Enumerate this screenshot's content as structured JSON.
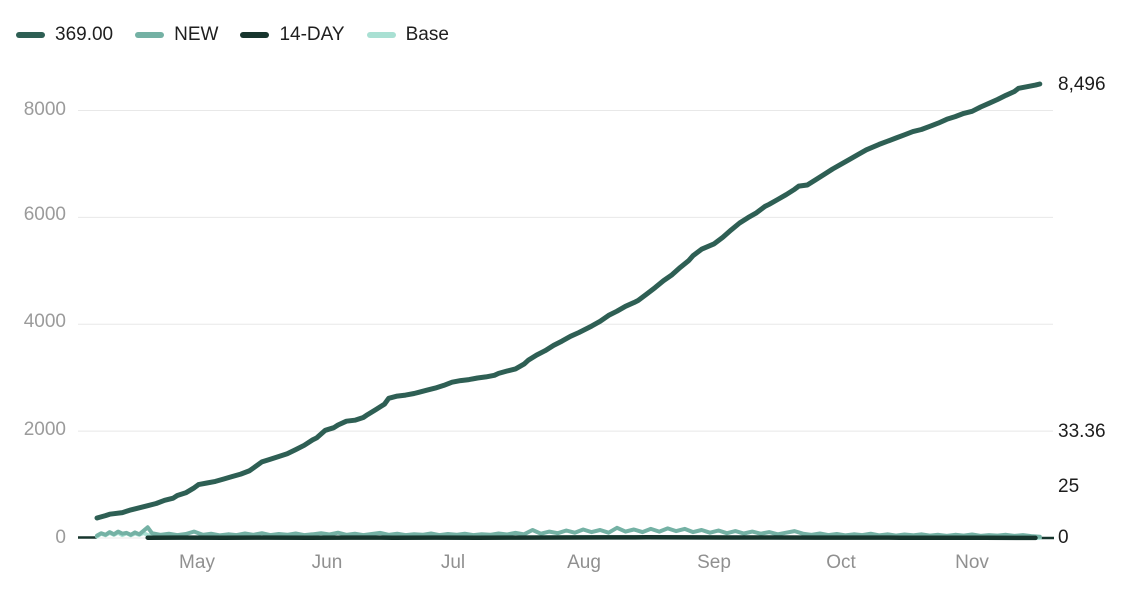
{
  "legend": {
    "items": [
      {
        "label": "369.00",
        "color": "#2e5f54"
      },
      {
        "label": "NEW",
        "color": "#74b1a4"
      },
      {
        "label": "14-DAY",
        "color": "#17352d"
      },
      {
        "label": "Base",
        "color": "#a9e0d3"
      }
    ]
  },
  "y_axis": {
    "ticks": [
      "8000",
      "6000",
      "4000",
      "2000",
      "0"
    ]
  },
  "x_axis": {
    "ticks": [
      "May",
      "Jun",
      "Jul",
      "Aug",
      "Sep",
      "Oct",
      "Nov"
    ]
  },
  "right_labels": {
    "total": "8,496",
    "avg": "33.36",
    "mid": "25",
    "zero": "0"
  },
  "chart_data": {
    "type": "line",
    "title": "",
    "xlabel": "",
    "ylabel": "",
    "x_unit": "days (day 0 = early April, ticks at month starts May–Nov)",
    "ylim": [
      0,
      8500
    ],
    "grid": "horizontal",
    "grid_color": "#e8e8e8",
    "legend_position": "top-left",
    "y_ticks_values": [
      0,
      2000,
      4000,
      6000,
      8000
    ],
    "x_ticks_days": [
      23.7,
      54.4,
      84.2,
      115.2,
      145.9,
      176.0,
      206.9
    ],
    "last_values": {
      "cumulative": 8496,
      "avg": 33.36,
      "mid": 25,
      "zero": 0
    },
    "series": [
      {
        "name": "Base",
        "color": "#a9e0d3",
        "width": 4,
        "points": [
          [
            0,
            30
          ],
          [
            1,
            80
          ],
          [
            2,
            50
          ],
          [
            3,
            95
          ],
          [
            4,
            60
          ],
          [
            5,
            100
          ],
          [
            6,
            55
          ],
          [
            7,
            90
          ],
          [
            8,
            50
          ],
          [
            9,
            85
          ],
          [
            10,
            60
          ],
          [
            11,
            95
          ],
          [
            12,
            55
          ],
          [
            14,
            40
          ],
          [
            16,
            25
          ],
          [
            20,
            15
          ],
          [
            30,
            12
          ],
          [
            40,
            10
          ],
          [
            60,
            12
          ],
          [
            80,
            10
          ],
          [
            100,
            15
          ],
          [
            120,
            18
          ],
          [
            140,
            15
          ],
          [
            160,
            12
          ],
          [
            180,
            10
          ],
          [
            200,
            8
          ],
          [
            223,
            2
          ]
        ]
      },
      {
        "name": "NEW",
        "color": "#74b1a4",
        "width": 4,
        "points": [
          [
            0,
            45
          ],
          [
            1,
            90
          ],
          [
            2,
            60
          ],
          [
            3,
            110
          ],
          [
            4,
            70
          ],
          [
            5,
            120
          ],
          [
            6,
            80
          ],
          [
            7,
            95
          ],
          [
            8,
            60
          ],
          [
            9,
            105
          ],
          [
            10,
            70
          ],
          [
            12,
            200
          ],
          [
            13,
            90
          ],
          [
            15,
            60
          ],
          [
            17,
            80
          ],
          [
            19,
            55
          ],
          [
            21,
            75
          ],
          [
            23,
            120
          ],
          [
            25,
            60
          ],
          [
            27,
            80
          ],
          [
            29,
            50
          ],
          [
            31,
            70
          ],
          [
            33,
            55
          ],
          [
            35,
            85
          ],
          [
            37,
            60
          ],
          [
            39,
            90
          ],
          [
            41,
            55
          ],
          [
            43,
            75
          ],
          [
            45,
            60
          ],
          [
            47,
            85
          ],
          [
            49,
            55
          ],
          [
            51,
            70
          ],
          [
            53,
            90
          ],
          [
            55,
            65
          ],
          [
            57,
            100
          ],
          [
            59,
            60
          ],
          [
            61,
            80
          ],
          [
            63,
            55
          ],
          [
            65,
            75
          ],
          [
            67,
            95
          ],
          [
            69,
            60
          ],
          [
            71,
            80
          ],
          [
            73,
            55
          ],
          [
            75,
            70
          ],
          [
            77,
            60
          ],
          [
            79,
            85
          ],
          [
            81,
            55
          ],
          [
            83,
            75
          ],
          [
            85,
            60
          ],
          [
            87,
            80
          ],
          [
            89,
            55
          ],
          [
            91,
            70
          ],
          [
            93,
            60
          ],
          [
            95,
            85
          ],
          [
            97,
            65
          ],
          [
            99,
            95
          ],
          [
            101,
            70
          ],
          [
            103,
            150
          ],
          [
            105,
            80
          ],
          [
            107,
            120
          ],
          [
            109,
            90
          ],
          [
            111,
            140
          ],
          [
            113,
            100
          ],
          [
            115,
            160
          ],
          [
            117,
            110
          ],
          [
            119,
            150
          ],
          [
            121,
            100
          ],
          [
            123,
            190
          ],
          [
            125,
            120
          ],
          [
            127,
            160
          ],
          [
            129,
            110
          ],
          [
            131,
            170
          ],
          [
            133,
            120
          ],
          [
            135,
            180
          ],
          [
            137,
            130
          ],
          [
            139,
            170
          ],
          [
            141,
            110
          ],
          [
            143,
            150
          ],
          [
            145,
            100
          ],
          [
            147,
            140
          ],
          [
            149,
            90
          ],
          [
            151,
            130
          ],
          [
            153,
            85
          ],
          [
            155,
            120
          ],
          [
            157,
            80
          ],
          [
            159,
            110
          ],
          [
            161,
            70
          ],
          [
            163,
            100
          ],
          [
            165,
            130
          ],
          [
            167,
            80
          ],
          [
            169,
            60
          ],
          [
            171,
            85
          ],
          [
            173,
            55
          ],
          [
            175,
            75
          ],
          [
            177,
            50
          ],
          [
            179,
            70
          ],
          [
            181,
            55
          ],
          [
            183,
            80
          ],
          [
            185,
            50
          ],
          [
            187,
            70
          ],
          [
            189,
            45
          ],
          [
            191,
            65
          ],
          [
            193,
            50
          ],
          [
            195,
            70
          ],
          [
            197,
            45
          ],
          [
            199,
            60
          ],
          [
            201,
            40
          ],
          [
            203,
            60
          ],
          [
            205,
            45
          ],
          [
            207,
            65
          ],
          [
            209,
            40
          ],
          [
            211,
            55
          ],
          [
            213,
            45
          ],
          [
            215,
            60
          ],
          [
            217,
            40
          ],
          [
            219,
            55
          ],
          [
            221,
            35
          ],
          [
            223,
            25
          ]
        ]
      },
      {
        "name": "14-DAY",
        "color": "#17352d",
        "width": 4.5,
        "points": [
          [
            12,
            5
          ],
          [
            20,
            8
          ],
          [
            30,
            6
          ],
          [
            40,
            8
          ],
          [
            50,
            6
          ],
          [
            60,
            8
          ],
          [
            70,
            6
          ],
          [
            80,
            7
          ],
          [
            90,
            6
          ],
          [
            100,
            8
          ],
          [
            110,
            10
          ],
          [
            120,
            12
          ],
          [
            130,
            14
          ],
          [
            140,
            12
          ],
          [
            150,
            10
          ],
          [
            160,
            10
          ],
          [
            170,
            8
          ],
          [
            180,
            7
          ],
          [
            190,
            6
          ],
          [
            200,
            5
          ],
          [
            210,
            5
          ],
          [
            222,
            2
          ]
        ]
      },
      {
        "name": "369.00",
        "color": "#2e5f54",
        "width": 5,
        "points": [
          [
            0,
            375
          ],
          [
            2,
            420
          ],
          [
            3,
            445
          ],
          [
            4,
            455
          ],
          [
            6,
            475
          ],
          [
            8,
            525
          ],
          [
            10,
            565
          ],
          [
            12,
            605
          ],
          [
            14,
            645
          ],
          [
            16,
            705
          ],
          [
            18,
            745
          ],
          [
            19,
            795
          ],
          [
            21,
            845
          ],
          [
            23,
            940
          ],
          [
            24,
            1000
          ],
          [
            26,
            1030
          ],
          [
            28,
            1060
          ],
          [
            30,
            1105
          ],
          [
            32,
            1150
          ],
          [
            34,
            1195
          ],
          [
            36,
            1255
          ],
          [
            37,
            1310
          ],
          [
            39,
            1425
          ],
          [
            41,
            1475
          ],
          [
            43,
            1525
          ],
          [
            45,
            1575
          ],
          [
            47,
            1655
          ],
          [
            49,
            1735
          ],
          [
            51,
            1835
          ],
          [
            52,
            1875
          ],
          [
            54,
            2015
          ],
          [
            56,
            2065
          ],
          [
            57,
            2115
          ],
          [
            59,
            2185
          ],
          [
            61,
            2205
          ],
          [
            63,
            2255
          ],
          [
            64,
            2310
          ],
          [
            66,
            2405
          ],
          [
            68,
            2505
          ],
          [
            69,
            2615
          ],
          [
            71,
            2655
          ],
          [
            73,
            2675
          ],
          [
            75,
            2705
          ],
          [
            76,
            2725
          ],
          [
            78,
            2765
          ],
          [
            80,
            2805
          ],
          [
            82,
            2855
          ],
          [
            84,
            2915
          ],
          [
            86,
            2945
          ],
          [
            88,
            2965
          ],
          [
            90,
            2995
          ],
          [
            92,
            3015
          ],
          [
            94,
            3045
          ],
          [
            95,
            3080
          ],
          [
            97,
            3125
          ],
          [
            99,
            3165
          ],
          [
            101,
            3255
          ],
          [
            102,
            3325
          ],
          [
            104,
            3425
          ],
          [
            106,
            3505
          ],
          [
            108,
            3605
          ],
          [
            110,
            3685
          ],
          [
            112,
            3775
          ],
          [
            114,
            3845
          ],
          [
            115,
            3885
          ],
          [
            117,
            3965
          ],
          [
            119,
            4055
          ],
          [
            121,
            4165
          ],
          [
            123,
            4245
          ],
          [
            125,
            4335
          ],
          [
            127,
            4405
          ],
          [
            128,
            4445
          ],
          [
            130,
            4565
          ],
          [
            132,
            4685
          ],
          [
            134,
            4815
          ],
          [
            136,
            4925
          ],
          [
            138,
            5065
          ],
          [
            140,
            5195
          ],
          [
            141,
            5285
          ],
          [
            143,
            5405
          ],
          [
            146,
            5505
          ],
          [
            148,
            5625
          ],
          [
            150,
            5765
          ],
          [
            152,
            5895
          ],
          [
            154,
            5995
          ],
          [
            156,
            6085
          ],
          [
            158,
            6205
          ],
          [
            159,
            6245
          ],
          [
            161,
            6335
          ],
          [
            163,
            6425
          ],
          [
            165,
            6525
          ],
          [
            166,
            6585
          ],
          [
            168,
            6605
          ],
          [
            170,
            6705
          ],
          [
            172,
            6805
          ],
          [
            174,
            6905
          ],
          [
            176,
            6995
          ],
          [
            178,
            7085
          ],
          [
            180,
            7175
          ],
          [
            182,
            7265
          ],
          [
            185,
            7365
          ],
          [
            187,
            7425
          ],
          [
            189,
            7485
          ],
          [
            191,
            7545
          ],
          [
            193,
            7605
          ],
          [
            195,
            7645
          ],
          [
            197,
            7705
          ],
          [
            199,
            7765
          ],
          [
            201,
            7835
          ],
          [
            203,
            7885
          ],
          [
            205,
            7945
          ],
          [
            207,
            7985
          ],
          [
            209,
            8065
          ],
          [
            211,
            8135
          ],
          [
            213,
            8205
          ],
          [
            215,
            8285
          ],
          [
            217,
            8355
          ],
          [
            218,
            8415
          ],
          [
            220,
            8445
          ],
          [
            222,
            8475
          ],
          [
            223,
            8496
          ]
        ]
      }
    ]
  }
}
